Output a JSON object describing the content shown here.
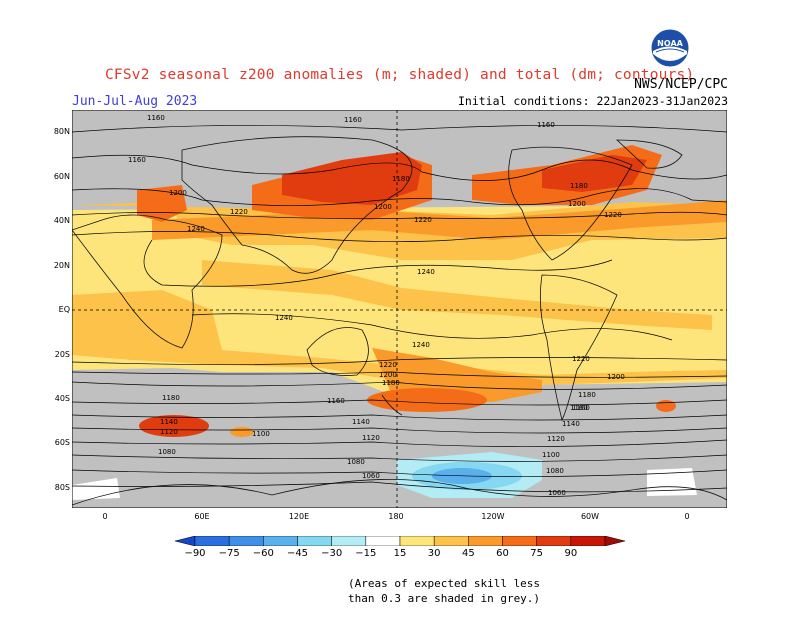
{
  "header": {
    "title": "CFSv2 seasonal z200 anomalies (m; shaded) and total (dm; contours)",
    "agency": "NWS/NCEP/CPC",
    "season": "Jun-Jul-Aug 2023",
    "initial_conditions": "Initial conditions: 22Jan2023-31Jan2023",
    "logo_text": "NOAA"
  },
  "map": {
    "lat_labels": [
      "80N",
      "60N",
      "40N",
      "20N",
      "EQ",
      "20S",
      "40S",
      "60S",
      "80S"
    ],
    "lon_labels": [
      "0",
      "60E",
      "120E",
      "180",
      "120W",
      "60W",
      "0"
    ],
    "contour_labels": [
      "1160",
      "1160",
      "1160",
      "1160",
      "1180",
      "1180",
      "1200",
      "1200",
      "1200",
      "1220",
      "1220",
      "1220",
      "1240",
      "1240",
      "1240",
      "1240",
      "1220",
      "1200",
      "1180",
      "1220",
      "1200",
      "1180",
      "1160",
      "1180",
      "1160",
      "1140",
      "1120",
      "1140",
      "1100",
      "1080",
      "1080",
      "1120",
      "1100",
      "1080",
      "1060",
      "1060",
      "1140",
      "1160",
      "1120"
    ],
    "colors": {
      "grey_low_skill": "#c0c0c0",
      "neutral": "#ffffff",
      "pos_15": "#fde57b",
      "pos_30": "#fcc249",
      "pos_45": "#f99a2a",
      "pos_60": "#f46c17",
      "pos_75": "#e13b10",
      "pos_90": "#c81508",
      "neg_15": "#b4ecf5",
      "neg_30": "#86d7f1",
      "neg_45": "#5ab0ec"
    }
  },
  "colorbar": {
    "ticks": [
      "−90",
      "−75",
      "−60",
      "−45",
      "−30",
      "−15",
      "15",
      "30",
      "45",
      "60",
      "75",
      "90"
    ],
    "colors": [
      "#1446c8",
      "#2c6ee0",
      "#3f8fe9",
      "#5ab0ec",
      "#86d7f1",
      "#b4ecf5",
      "#ffffff",
      "#fde57b",
      "#fcc249",
      "#f99a2a",
      "#f46c17",
      "#e13b10",
      "#c81508",
      "#a00c05"
    ]
  },
  "note": {
    "line1": "(Areas of expected skill less",
    "line2": "than 0.3 are shaded in grey.)"
  }
}
